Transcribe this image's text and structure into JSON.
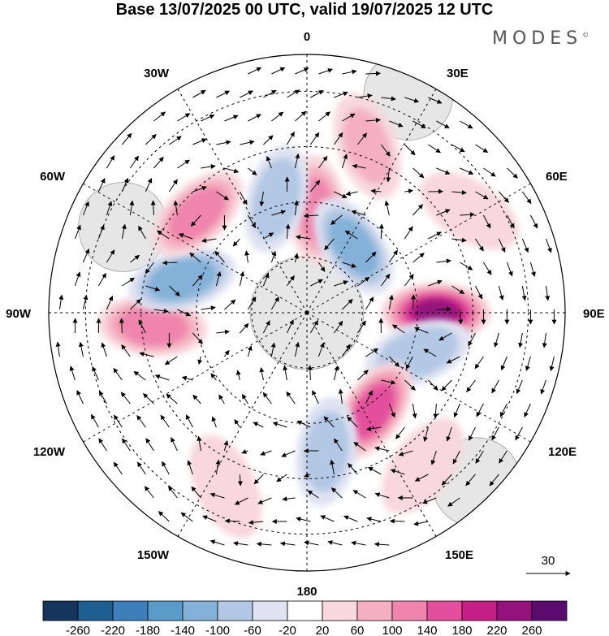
{
  "title": "Base 13/07/2025 00 UTC, valid 19/07/2025 12 UTC",
  "brand": "MODES",
  "brand_mark": "©",
  "longitude_labels": {
    "top": "0",
    "right": "90E",
    "bottom": "180",
    "left": "90W",
    "n30e": "30E",
    "n60e": "60E",
    "n120e": "120E",
    "n150e": "150E",
    "n150w": "150W",
    "n120w": "120W",
    "n60w": "60W",
    "n30w": "30W"
  },
  "vector_scale": {
    "value": "30"
  },
  "colorbar": {
    "labels": [
      "-260",
      "-220",
      "-180",
      "-140",
      "-100",
      "-60",
      "-20",
      "20",
      "60",
      "100",
      "140",
      "180",
      "220",
      "260"
    ],
    "colors": [
      "#15355a",
      "#1d5f91",
      "#3b80bb",
      "#5a9bc9",
      "#83b1d8",
      "#b3c8e4",
      "#dfe3f1",
      "#ffffff",
      "#f8d7dd",
      "#f4b0c0",
      "#ef85ac",
      "#e34f9c",
      "#c61f86",
      "#94127b",
      "#5a0c6e"
    ]
  },
  "anomaly_centers": [
    {
      "lon": 5,
      "lat": -62,
      "value": 130
    },
    {
      "lon": 35,
      "lat": -68,
      "value": -130
    },
    {
      "lon": 90,
      "lat": -55,
      "value": 250
    },
    {
      "lon": 110,
      "lat": -58,
      "value": -110
    },
    {
      "lon": 146,
      "lat": -58,
      "value": 190
    },
    {
      "lon": 172,
      "lat": -52,
      "value": -90
    },
    {
      "lon": 143,
      "lat": -38,
      "value": 60
    },
    {
      "lon": -155,
      "lat": -38,
      "value": 60
    },
    {
      "lon": -95,
      "lat": -48,
      "value": 150
    },
    {
      "lon": -75,
      "lat": -55,
      "value": -150
    },
    {
      "lon": -48,
      "lat": -50,
      "value": 140
    },
    {
      "lon": -15,
      "lat": -58,
      "value": -100
    },
    {
      "lon": 20,
      "lat": -42,
      "value": 80
    },
    {
      "lon": 58,
      "lat": -38,
      "value": 40
    }
  ],
  "landmasses": [
    {
      "name": "Antarctica",
      "lon": 0,
      "lat": -90,
      "value": 1
    },
    {
      "name": "South America",
      "lon": -65,
      "lat": -35,
      "value": 1
    },
    {
      "name": "Africa",
      "lon": 25,
      "lat": -25,
      "value": 1
    },
    {
      "name": "Australia",
      "lon": 135,
      "lat": -25,
      "value": 1
    }
  ]
}
